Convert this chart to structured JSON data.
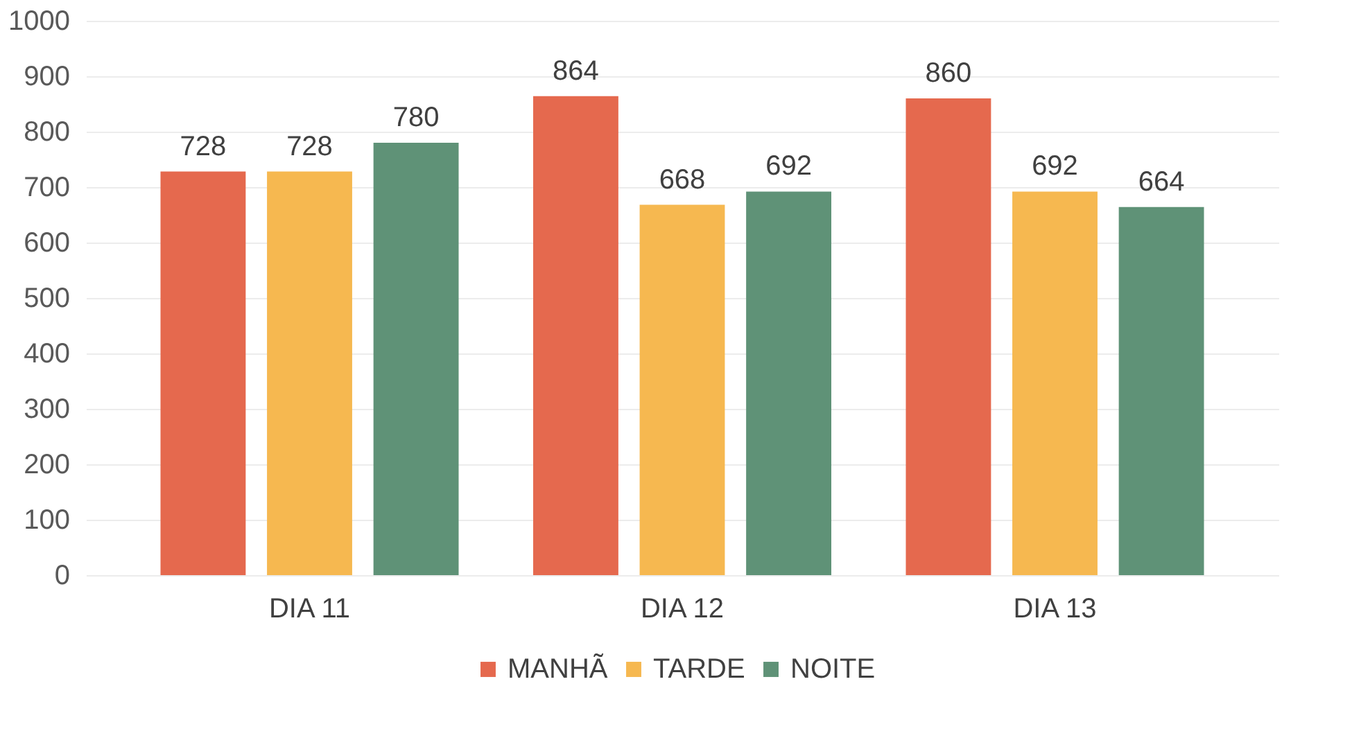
{
  "chart_data": {
    "type": "bar",
    "categories": [
      "DIA 11",
      "DIA 12",
      "DIA 13"
    ],
    "series": [
      {
        "name": "MANHÃ",
        "color": "#e5694e",
        "values": [
          728,
          864,
          860
        ]
      },
      {
        "name": "TARDE",
        "color": "#f6b850",
        "values": [
          728,
          668,
          692
        ]
      },
      {
        "name": "NOITE",
        "color": "#5f9277",
        "values": [
          780,
          692,
          664
        ]
      }
    ],
    "ylim": [
      0,
      1000
    ],
    "yticks": [
      0,
      100,
      200,
      300,
      400,
      500,
      600,
      700,
      800,
      900,
      1000
    ],
    "grid": "y",
    "legend": "bottom",
    "data_labels": true
  }
}
